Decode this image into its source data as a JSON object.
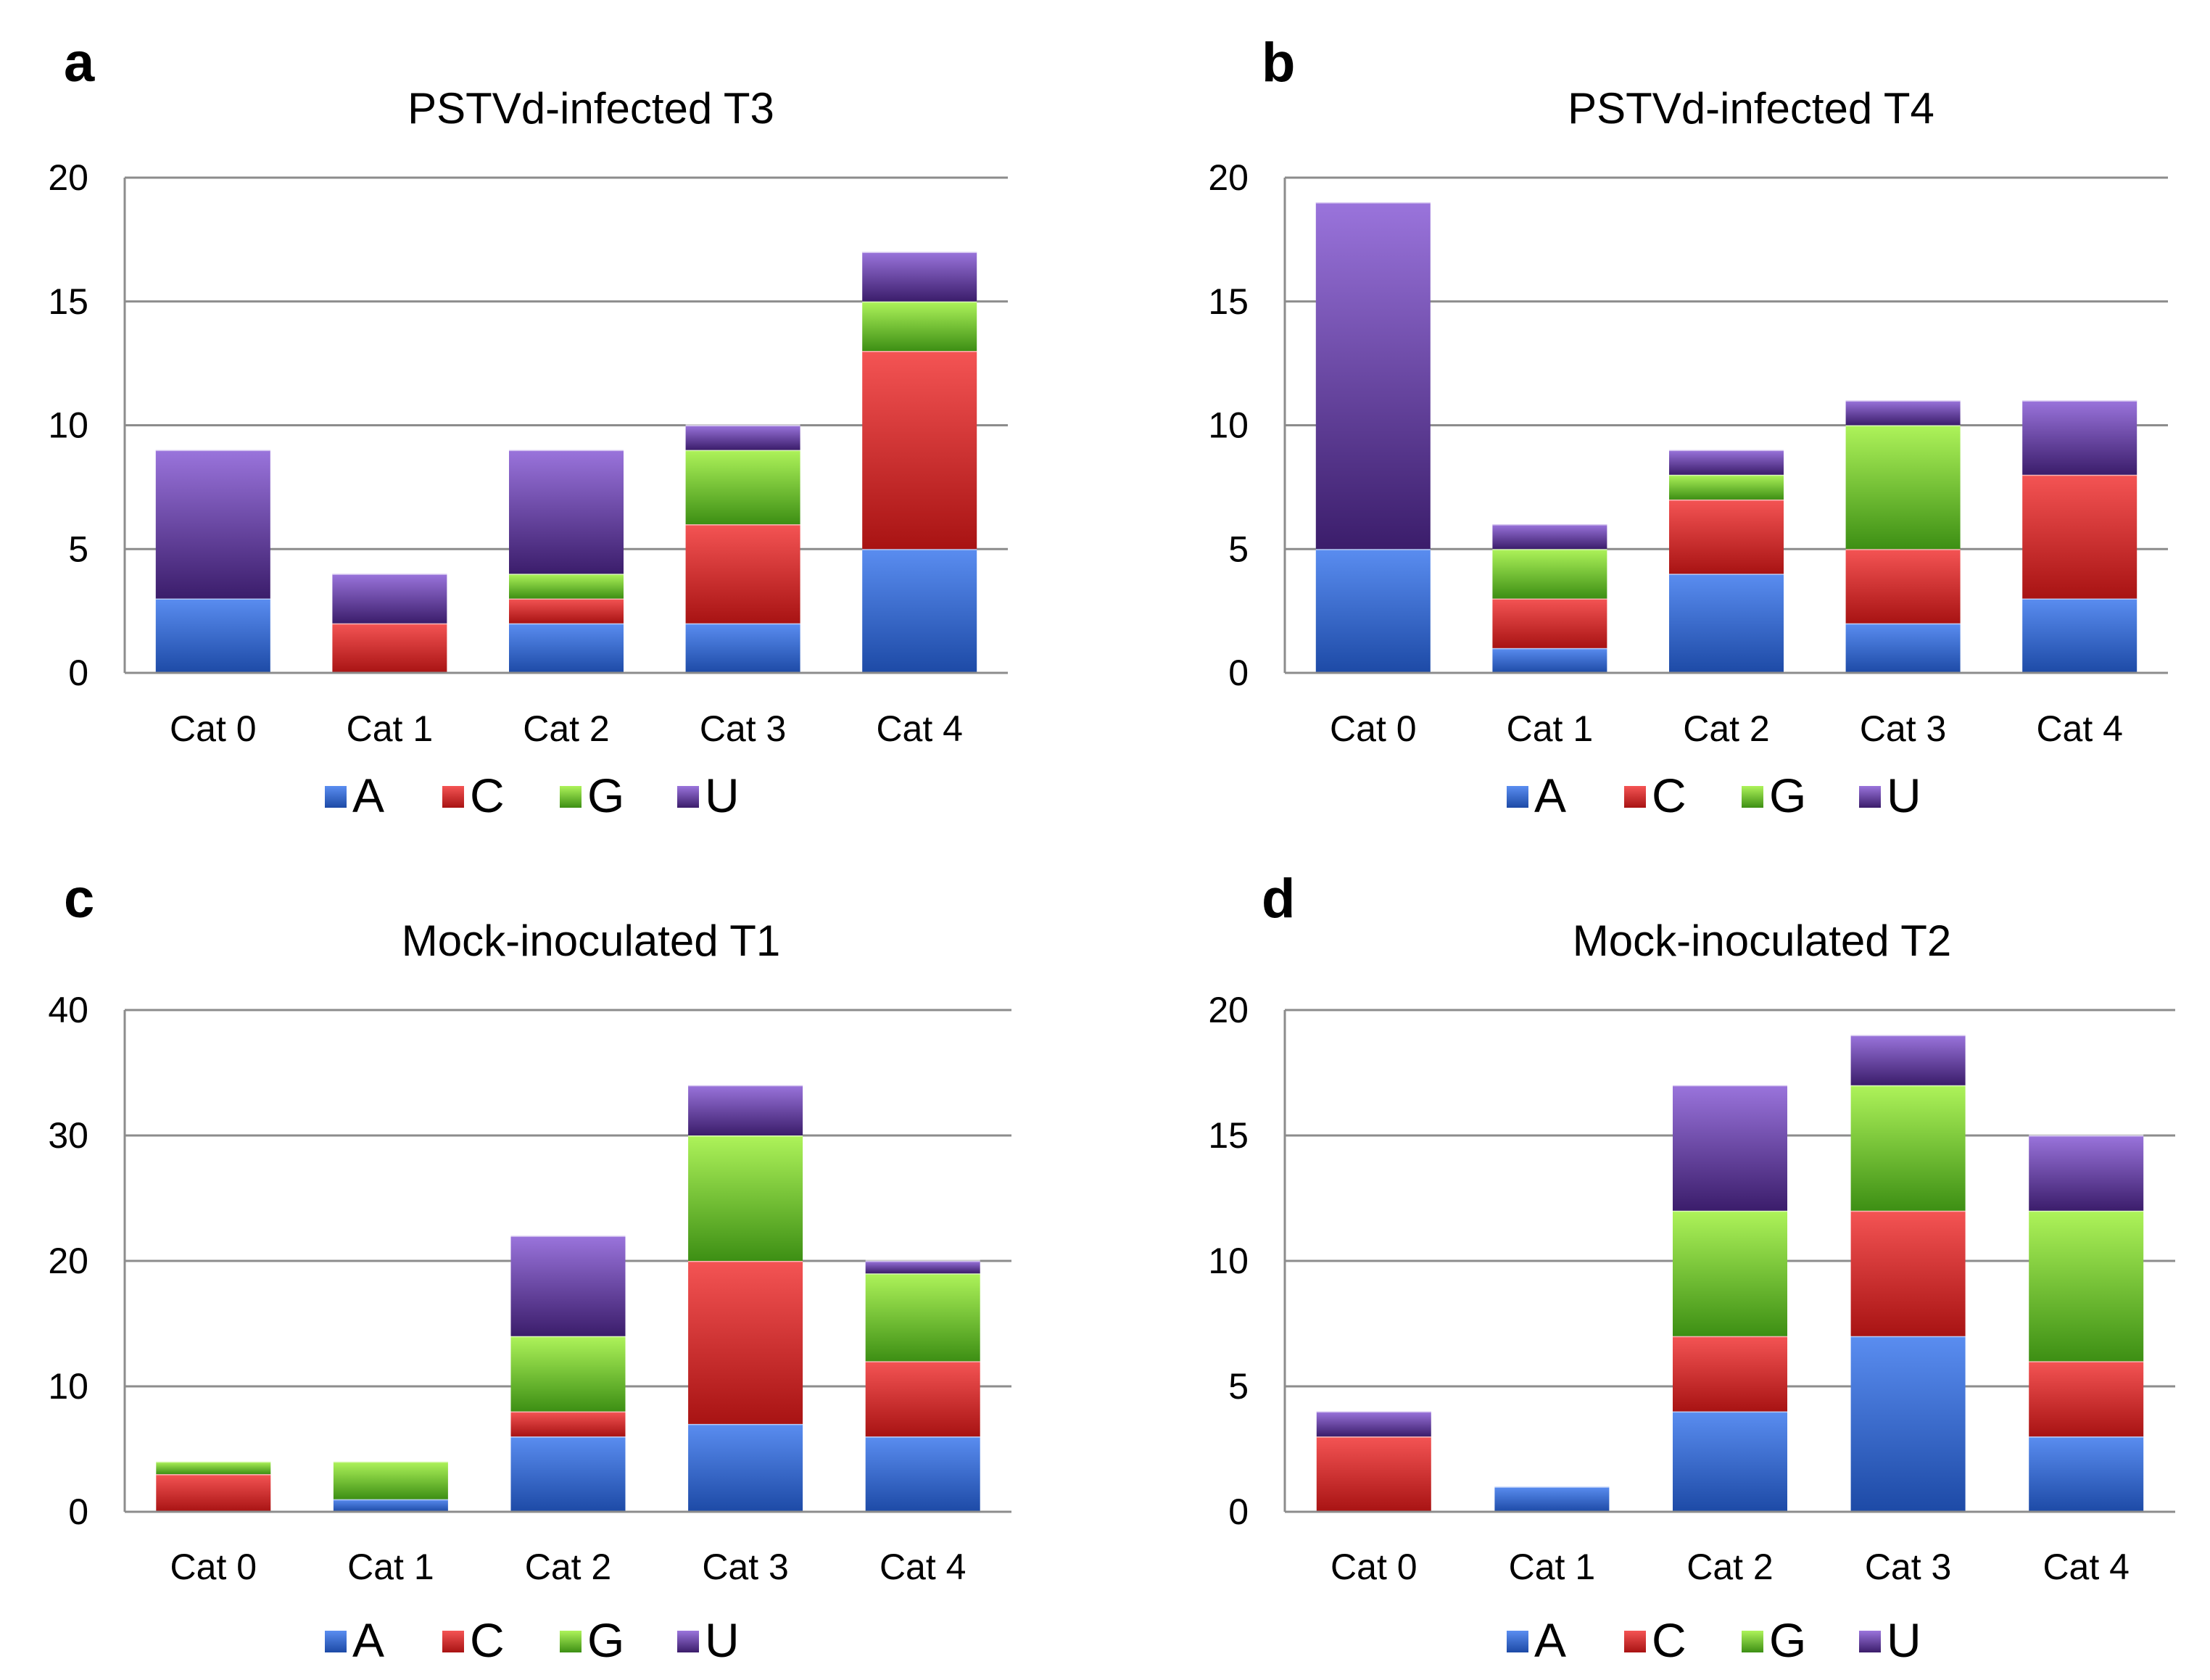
{
  "colors": {
    "A": {
      "light": "#5a8df0",
      "dark": "#1d4aa6"
    },
    "C": {
      "light": "#f45454",
      "dark": "#a81313"
    },
    "G": {
      "light": "#aef35a",
      "dark": "#3d8f14"
    },
    "U": {
      "light": "#9a74dc",
      "dark": "#3b1d6b"
    }
  },
  "chart_data": [
    {
      "panel": "a",
      "type": "bar",
      "stacked": true,
      "title": "PSTVd-infected T3",
      "categories": [
        "Cat 0",
        "Cat 1",
        "Cat 2",
        "Cat 3",
        "Cat 4"
      ],
      "ylim": [
        0,
        20
      ],
      "yticks": [
        0,
        5,
        10,
        15,
        20
      ],
      "grid": true,
      "legend": "bottom",
      "series": [
        {
          "name": "A",
          "values": [
            3,
            0,
            2,
            2,
            5
          ]
        },
        {
          "name": "C",
          "values": [
            0,
            2,
            1,
            4,
            8
          ]
        },
        {
          "name": "G",
          "values": [
            0,
            0,
            1,
            3,
            2
          ]
        },
        {
          "name": "U",
          "values": [
            6,
            2,
            5,
            1,
            2
          ]
        }
      ]
    },
    {
      "panel": "b",
      "type": "bar",
      "stacked": true,
      "title": "PSTVd-infected T4",
      "categories": [
        "Cat 0",
        "Cat 1",
        "Cat 2",
        "Cat 3",
        "Cat 4"
      ],
      "ylim": [
        0,
        20
      ],
      "yticks": [
        0,
        5,
        10,
        15,
        20
      ],
      "grid": true,
      "legend": "bottom",
      "series": [
        {
          "name": "A",
          "values": [
            5,
            1,
            4,
            2,
            3
          ]
        },
        {
          "name": "C",
          "values": [
            0,
            2,
            3,
            3,
            5
          ]
        },
        {
          "name": "G",
          "values": [
            0,
            2,
            1,
            5,
            0
          ]
        },
        {
          "name": "U",
          "values": [
            14,
            1,
            1,
            1,
            3
          ]
        }
      ]
    },
    {
      "panel": "c",
      "type": "bar",
      "stacked": true,
      "title": "Mock-inoculated T1",
      "categories": [
        "Cat 0",
        "Cat 1",
        "Cat 2",
        "Cat 3",
        "Cat 4"
      ],
      "ylim": [
        0,
        40
      ],
      "yticks": [
        0,
        10,
        20,
        30,
        40
      ],
      "grid": true,
      "legend": "bottom",
      "series": [
        {
          "name": "A",
          "values": [
            0,
            1,
            6,
            7,
            6
          ]
        },
        {
          "name": "C",
          "values": [
            3,
            0,
            2,
            13,
            6
          ]
        },
        {
          "name": "G",
          "values": [
            1,
            3,
            6,
            10,
            7
          ]
        },
        {
          "name": "U",
          "values": [
            0,
            0,
            8,
            4,
            1
          ]
        }
      ]
    },
    {
      "panel": "d",
      "type": "bar",
      "stacked": true,
      "title": "Mock-inoculated T2",
      "categories": [
        "Cat 0",
        "Cat 1",
        "Cat 2",
        "Cat 3",
        "Cat 4"
      ],
      "ylim": [
        0,
        20
      ],
      "yticks": [
        0,
        5,
        10,
        15,
        20
      ],
      "grid": true,
      "legend": "bottom",
      "series": [
        {
          "name": "A",
          "values": [
            0,
            1,
            4,
            7,
            3
          ]
        },
        {
          "name": "C",
          "values": [
            3,
            0,
            3,
            5,
            3
          ]
        },
        {
          "name": "G",
          "values": [
            0,
            0,
            5,
            5,
            6
          ]
        },
        {
          "name": "U",
          "values": [
            1,
            0,
            5,
            2,
            3
          ]
        }
      ]
    }
  ]
}
